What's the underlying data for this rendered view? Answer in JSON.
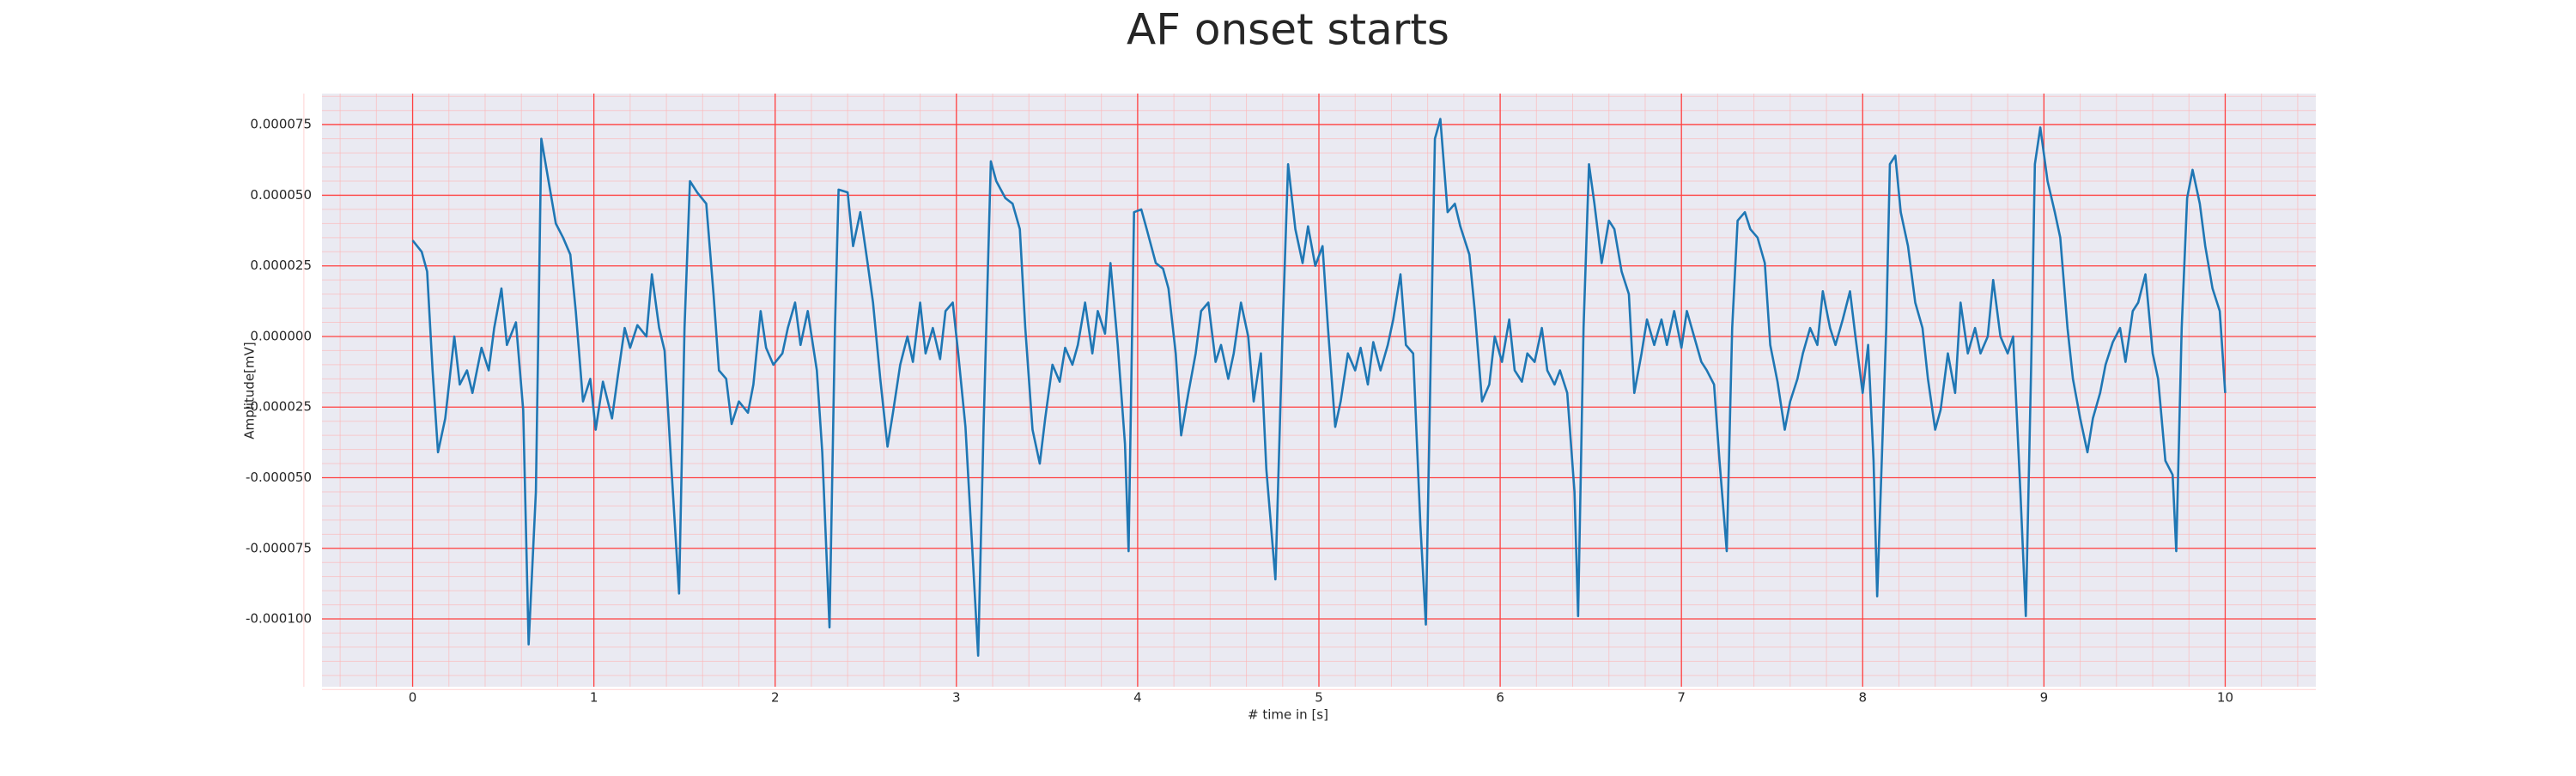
{
  "chart_data": {
    "type": "line",
    "title": "AF onset starts",
    "xlabel": "# time in [s]",
    "ylabel": "Amplitude[mV]",
    "color": "#1f77b4",
    "grid": true,
    "minor_grid": true,
    "xlim": [
      -0.5,
      10.5
    ],
    "ylim": [
      -0.000124,
      8.6e-05
    ],
    "xticks": [
      0,
      1,
      2,
      3,
      4,
      5,
      6,
      7,
      8,
      9,
      10
    ],
    "yticks": [
      {
        "value": -0.0001,
        "label": "-0.000100"
      },
      {
        "value": -7.5e-05,
        "label": "-0.000075"
      },
      {
        "value": -5e-05,
        "label": "-0.000050"
      },
      {
        "value": -2.5e-05,
        "label": "-0.000025"
      },
      {
        "value": 0,
        "label": "0.000000"
      },
      {
        "value": 2.5e-05,
        "label": "0.000025"
      },
      {
        "value": 5e-05,
        "label": "0.000050"
      },
      {
        "value": 7.5e-05,
        "label": "0.000075"
      }
    ],
    "x": [
      0,
      0.05,
      0.08,
      0.11,
      0.14,
      0.18,
      0.23,
      0.26,
      0.3,
      0.33,
      0.38,
      0.42,
      0.45,
      0.49,
      0.52,
      0.57,
      0.61,
      0.64,
      0.68,
      0.71,
      0.75,
      0.79,
      0.83,
      0.87,
      0.9,
      0.94,
      0.98,
      1.01,
      1.05,
      1.1,
      1.13,
      1.17,
      1.2,
      1.24,
      1.29,
      1.32,
      1.36,
      1.39,
      1.43,
      1.47,
      1.5,
      1.53,
      1.57,
      1.62,
      1.66,
      1.69,
      1.73,
      1.76,
      1.8,
      1.85,
      1.88,
      1.92,
      1.95,
      1.99,
      2.04,
      2.07,
      2.11,
      2.14,
      2.18,
      2.23,
      2.26,
      2.3,
      2.33,
      2.35,
      2.4,
      2.43,
      2.47,
      2.51,
      2.54,
      2.58,
      2.62,
      2.65,
      2.69,
      2.73,
      2.76,
      2.8,
      2.83,
      2.87,
      2.91,
      2.94,
      2.98,
      3.01,
      3.05,
      3.09,
      3.12,
      3.15,
      3.19,
      3.22,
      3.27,
      3.31,
      3.35,
      3.38,
      3.42,
      3.46,
      3.49,
      3.53,
      3.57,
      3.6,
      3.64,
      3.67,
      3.71,
      3.75,
      3.78,
      3.82,
      3.85,
      3.89,
      3.93,
      3.95,
      3.98,
      4.02,
      4.05,
      4.1,
      4.14,
      4.17,
      4.21,
      4.24,
      4.28,
      4.32,
      4.35,
      4.39,
      4.43,
      4.46,
      4.5,
      4.53,
      4.57,
      4.61,
      4.64,
      4.68,
      4.71,
      4.76,
      4.8,
      4.83,
      4.87,
      4.91,
      4.94,
      4.98,
      5.02,
      5.05,
      5.09,
      5.12,
      5.16,
      5.2,
      5.23,
      5.27,
      5.3,
      5.34,
      5.38,
      5.41,
      5.45,
      5.48,
      5.52,
      5.56,
      5.59,
      5.62,
      5.64,
      5.67,
      5.71,
      5.75,
      5.78,
      5.83,
      5.86,
      5.9,
      5.94,
      5.97,
      6.01,
      6.05,
      6.08,
      6.12,
      6.15,
      6.19,
      6.23,
      6.26,
      6.3,
      6.33,
      6.37,
      6.41,
      6.43,
      6.46,
      6.49,
      6.52,
      6.56,
      6.6,
      6.63,
      6.67,
      6.71,
      6.74,
      6.78,
      6.81,
      6.85,
      6.89,
      6.92,
      6.96,
      7.0,
      7.03,
      7.07,
      7.11,
      7.14,
      7.18,
      7.21,
      7.25,
      7.28,
      7.31,
      7.35,
      7.38,
      7.42,
      7.46,
      7.49,
      7.53,
      7.57,
      7.6,
      7.64,
      7.67,
      7.71,
      7.75,
      7.78,
      7.82,
      7.85,
      7.89,
      7.93,
      7.96,
      8.0,
      8.03,
      8.06,
      8.08,
      8.13,
      8.15,
      8.18,
      8.21,
      8.25,
      8.29,
      8.33,
      8.36,
      8.4,
      8.43,
      8.47,
      8.51,
      8.54,
      8.58,
      8.62,
      8.65,
      8.69,
      8.72,
      8.76,
      8.8,
      8.83,
      8.87,
      8.9,
      8.93,
      8.95,
      8.98,
      9.02,
      9.06,
      9.09,
      9.13,
      9.16,
      9.2,
      9.24,
      9.27,
      9.31,
      9.34,
      9.38,
      9.42,
      9.45,
      9.49,
      9.52,
      9.56,
      9.6,
      9.63,
      9.67,
      9.71,
      9.73,
      9.76,
      9.79,
      9.82,
      9.86,
      9.89,
      9.93,
      9.97,
      10.0
    ],
    "values": [
      3.4e-05,
      3e-05,
      2.3e-05,
      -1.2e-05,
      -4.1e-05,
      -2.9e-05,
      0,
      -1.7e-05,
      -1.2e-05,
      -2e-05,
      -4e-06,
      -1.2e-05,
      3e-06,
      1.7e-05,
      -3e-06,
      5e-06,
      -2.6e-05,
      -0.000109,
      -5.5e-05,
      7e-05,
      5.5e-05,
      4e-05,
      3.5e-05,
      2.9e-05,
      9e-06,
      -2.3e-05,
      -1.5e-05,
      -3.3e-05,
      -1.6e-05,
      -2.9e-05,
      -1.5e-05,
      3e-06,
      -4e-06,
      4e-06,
      0,
      2.2e-05,
      3e-06,
      -5e-06,
      -4.9e-05,
      -9.1e-05,
      3e-06,
      5.5e-05,
      5.1e-05,
      4.7e-05,
      1.5e-05,
      -1.2e-05,
      -1.5e-05,
      -3.1e-05,
      -2.3e-05,
      -2.7e-05,
      -1.7e-05,
      9e-06,
      -4e-06,
      -1e-05,
      -6e-06,
      3e-06,
      1.2e-05,
      -3e-06,
      9e-06,
      -1.2e-05,
      -4.1e-05,
      -0.000103,
      3e-06,
      5.2e-05,
      5.1e-05,
      3.2e-05,
      4.4e-05,
      2.6e-05,
      1.2e-05,
      -1.5e-05,
      -3.9e-05,
      -2.7e-05,
      -1e-05,
      0,
      -9e-06,
      1.2e-05,
      -6e-06,
      3e-06,
      -8e-06,
      9e-06,
      1.2e-05,
      -6e-06,
      -3.2e-05,
      -7.8e-05,
      -0.000113,
      -3.2e-05,
      6.2e-05,
      5.5e-05,
      4.9e-05,
      4.7e-05,
      3.8e-05,
      3e-06,
      -3.3e-05,
      -4.5e-05,
      -2.9e-05,
      -1e-05,
      -1.6e-05,
      -4e-06,
      -1e-05,
      -3e-06,
      1.2e-05,
      -6e-06,
      9e-06,
      1e-06,
      2.6e-05,
      -3e-06,
      -3.8e-05,
      -7.6e-05,
      4.4e-05,
      4.5e-05,
      3.8e-05,
      2.6e-05,
      2.4e-05,
      1.7e-05,
      -6e-06,
      -3.5e-05,
      -2e-05,
      -6e-06,
      9e-06,
      1.2e-05,
      -9e-06,
      -3e-06,
      -1.5e-05,
      -6e-06,
      1.2e-05,
      0,
      -2.3e-05,
      -6e-06,
      -4.7e-05,
      -8.6e-05,
      3e-06,
      6.1e-05,
      3.8e-05,
      2.6e-05,
      3.9e-05,
      2.5e-05,
      3.2e-05,
      3e-06,
      -3.2e-05,
      -2.3e-05,
      -6e-06,
      -1.2e-05,
      -4e-06,
      -1.7e-05,
      -2e-06,
      -1.2e-05,
      -3e-06,
      6e-06,
      2.2e-05,
      -3e-06,
      -6e-06,
      -6.7e-05,
      -0.000102,
      3e-06,
      7e-05,
      7.7e-05,
      4.4e-05,
      4.7e-05,
      3.9e-05,
      2.9e-05,
      9e-06,
      -2.3e-05,
      -1.7e-05,
      0,
      -9e-06,
      6e-06,
      -1.2e-05,
      -1.6e-05,
      -6e-06,
      -9e-06,
      3e-06,
      -1.2e-05,
      -1.7e-05,
      -1.2e-05,
      -2e-05,
      -5.5e-05,
      -9.9e-05,
      3e-06,
      6.1e-05,
      4.7e-05,
      2.6e-05,
      4.1e-05,
      3.8e-05,
      2.3e-05,
      1.5e-05,
      -2e-05,
      -6e-06,
      6e-06,
      -3e-06,
      6e-06,
      -3e-06,
      9e-06,
      -4e-06,
      9e-06,
      0,
      -9e-06,
      -1.2e-05,
      -1.7e-05,
      -4.4e-05,
      -7.6e-05,
      3e-06,
      4.1e-05,
      4.4e-05,
      3.8e-05,
      3.5e-05,
      2.6e-05,
      -3e-06,
      -1.6e-05,
      -3.3e-05,
      -2.3e-05,
      -1.5e-05,
      -6e-06,
      3e-06,
      -3e-06,
      1.6e-05,
      3e-06,
      -3e-06,
      6e-06,
      1.6e-05,
      0,
      -2e-05,
      -3e-06,
      -4.4e-05,
      -9.2e-05,
      3e-06,
      6.1e-05,
      6.4e-05,
      4.4e-05,
      3.2e-05,
      1.2e-05,
      3e-06,
      -1.5e-05,
      -3.3e-05,
      -2.6e-05,
      -6e-06,
      -2e-05,
      1.2e-05,
      -6e-06,
      3e-06,
      -6e-06,
      0,
      2e-05,
      0,
      -6e-06,
      0,
      -5.5e-05,
      -9.9e-05,
      -9e-06,
      6.1e-05,
      7.4e-05,
      5.5e-05,
      4.4e-05,
      3.5e-05,
      3e-06,
      -1.5e-05,
      -2.9e-05,
      -4.1e-05,
      -2.9e-05,
      -2e-05,
      -1e-05,
      -2e-06,
      3e-06,
      -9e-06,
      9e-06,
      1.2e-05,
      2.2e-05,
      -6e-06,
      -1.5e-05,
      -4.4e-05,
      -4.9e-05,
      -7.6e-05,
      3e-06,
      4.9e-05,
      5.9e-05,
      4.7e-05,
      3.2e-05,
      1.7e-05,
      9e-06,
      -2e-05
    ]
  }
}
